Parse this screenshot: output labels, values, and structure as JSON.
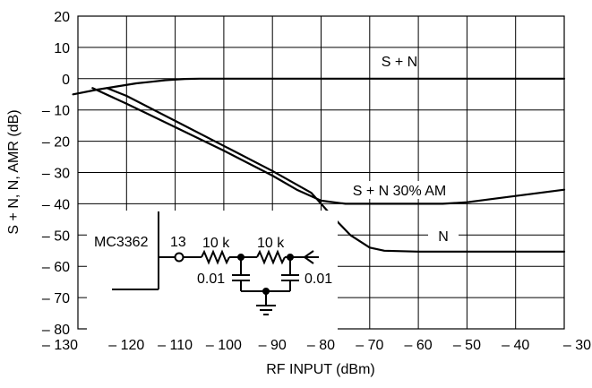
{
  "chart_data": {
    "type": "line",
    "xlabel": "RF INPUT (dBm)",
    "ylabel": "S + N, N, AMR (dB)",
    "xlim": [
      -130,
      -30
    ],
    "ylim": [
      -80,
      20
    ],
    "grid": true,
    "x_ticks": [
      -130,
      -120,
      -110,
      -100,
      -90,
      -80,
      -70,
      -60,
      -50,
      -40,
      -30
    ],
    "x_tick_labels": [
      "– 130",
      "– 120",
      "– 110",
      "– 100",
      "– 90",
      "– 80",
      "– 70",
      "– 60",
      "– 50",
      "– 40",
      "– 30"
    ],
    "y_ticks": [
      20,
      10,
      0,
      -10,
      -20,
      -30,
      -40,
      -50,
      -60,
      -70,
      -80
    ],
    "y_tick_labels": [
      "20",
      "10",
      "0",
      "– 10",
      "– 20",
      "– 30",
      "– 40",
      "– 50",
      "– 60",
      "– 70",
      "– 80"
    ],
    "series": [
      {
        "name": "S + N",
        "x": [
          -131,
          -126,
          -122,
          -118,
          -115,
          -112,
          -110,
          -108,
          -105,
          -100,
          -90,
          -80,
          -70,
          -60,
          -50,
          -40,
          -30
        ],
        "y": [
          -5,
          -3.5,
          -2.5,
          -1.5,
          -1,
          -0.5,
          -0.3,
          -0.1,
          0,
          0,
          0,
          0,
          0,
          0,
          0,
          0,
          0
        ]
      },
      {
        "name": "S + N 30% AM",
        "x": [
          -127,
          -120,
          -110,
          -100,
          -90,
          -85,
          -80,
          -75,
          -70,
          -60,
          -55,
          -50,
          -45,
          -40,
          -35,
          -30
        ],
        "y": [
          -3,
          -8,
          -15.5,
          -23,
          -31,
          -35.5,
          -39,
          -40,
          -40,
          -40,
          -40,
          -39.5,
          -38.5,
          -37.5,
          -36.5,
          -35.5
        ]
      },
      {
        "name": "N",
        "x": [
          -124,
          -120,
          -110,
          -100,
          -90,
          -82,
          -78,
          -74,
          -70,
          -67,
          -60,
          -50,
          -40,
          -30
        ],
        "y": [
          -3,
          -5.5,
          -13.5,
          -21.5,
          -29.5,
          -36.5,
          -43.5,
          -50,
          -54,
          -55,
          -55.3,
          -55.3,
          -55.3,
          -55.3
        ]
      }
    ],
    "annotations": {
      "s_plus_n": "S + N",
      "s_plus_n_am": "S + N 30% AM",
      "n": "N"
    },
    "inset_circuit": {
      "chip": "MC3362",
      "pin": "13",
      "r1": "10 k",
      "r2": "10 k",
      "c1": "0.01",
      "c2": "0.01"
    }
  }
}
